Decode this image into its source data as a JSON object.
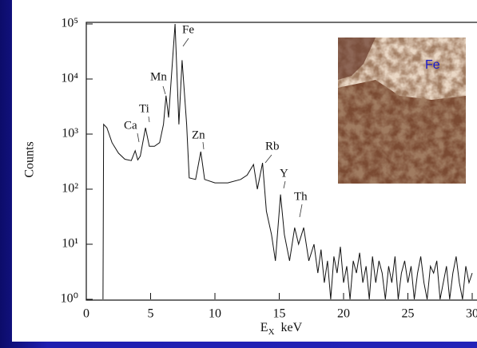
{
  "chart_data": {
    "type": "line",
    "ylabel": "Counts",
    "xlabel": [
      "E",
      "X",
      "keV"
    ],
    "xlim": [
      0,
      30
    ],
    "xticks": [
      0,
      5,
      10,
      15,
      20,
      25,
      30
    ],
    "ylim": [
      1,
      100000
    ],
    "yticks": [
      {
        "value": 1,
        "label": "10⁰"
      },
      {
        "value": 10,
        "label": "10¹"
      },
      {
        "value": 100,
        "label": "10²"
      },
      {
        "value": 1000,
        "label": "10³"
      },
      {
        "value": 10000,
        "label": "10⁴"
      },
      {
        "value": 100000,
        "label": "10⁵"
      }
    ],
    "log_y": true,
    "color": "#111111",
    "annotations": [
      "Ca",
      "Ti",
      "Mn",
      "Fe",
      "Zn",
      "Rb",
      "Y",
      "Th"
    ],
    "inset_label": "Fe",
    "x": [
      1.3,
      1.35,
      1.6,
      2.0,
      2.5,
      3.0,
      3.5,
      3.8,
      4.0,
      4.2,
      4.6,
      4.9,
      5.3,
      5.7,
      6.0,
      6.2,
      6.4,
      6.9,
      7.2,
      7.45,
      7.8,
      8.0,
      8.5,
      8.9,
      9.2,
      10.0,
      11.0,
      12.0,
      12.5,
      13.0,
      13.3,
      13.7,
      14.0,
      14.4,
      14.7,
      15.1,
      15.4,
      15.8,
      16.2,
      16.5,
      16.9,
      17.3,
      17.7,
      18,
      18.25,
      18.5,
      18.75,
      19,
      19.25,
      19.5,
      19.75,
      20,
      20.25,
      20.5,
      20.75,
      21,
      21.25,
      21.5,
      21.75,
      22,
      22.25,
      22.5,
      22.75,
      23,
      23.25,
      23.5,
      23.75,
      24,
      24.25,
      24.5,
      24.75,
      25,
      25.25,
      25.5,
      25.75,
      26,
      26.25,
      26.5,
      26.75,
      27,
      27.25,
      27.5,
      27.75,
      28,
      28.25,
      28.5,
      28.75,
      29,
      29.25,
      29.5,
      29.75,
      30
    ],
    "values": [
      1,
      1500,
      1300,
      700,
      450,
      350,
      330,
      500,
      340,
      400,
      1300,
      600,
      600,
      700,
      1500,
      5000,
      2000,
      100000,
      1500,
      22000,
      1500,
      160,
      150,
      480,
      150,
      130,
      130,
      150,
      180,
      280,
      100,
      300,
      40,
      15,
      5,
      80,
      15,
      5,
      20,
      10,
      20,
      5,
      10,
      3,
      8,
      2,
      5,
      1,
      6,
      3,
      9,
      2,
      4,
      1,
      5,
      3,
      7,
      2,
      4,
      1,
      6,
      2,
      5,
      3,
      1,
      4,
      2,
      6,
      1,
      3,
      5,
      2,
      4,
      1,
      3,
      6,
      2,
      1,
      4,
      3,
      5,
      1,
      2,
      4,
      1,
      3,
      6,
      2,
      1,
      4,
      2,
      3
    ]
  }
}
